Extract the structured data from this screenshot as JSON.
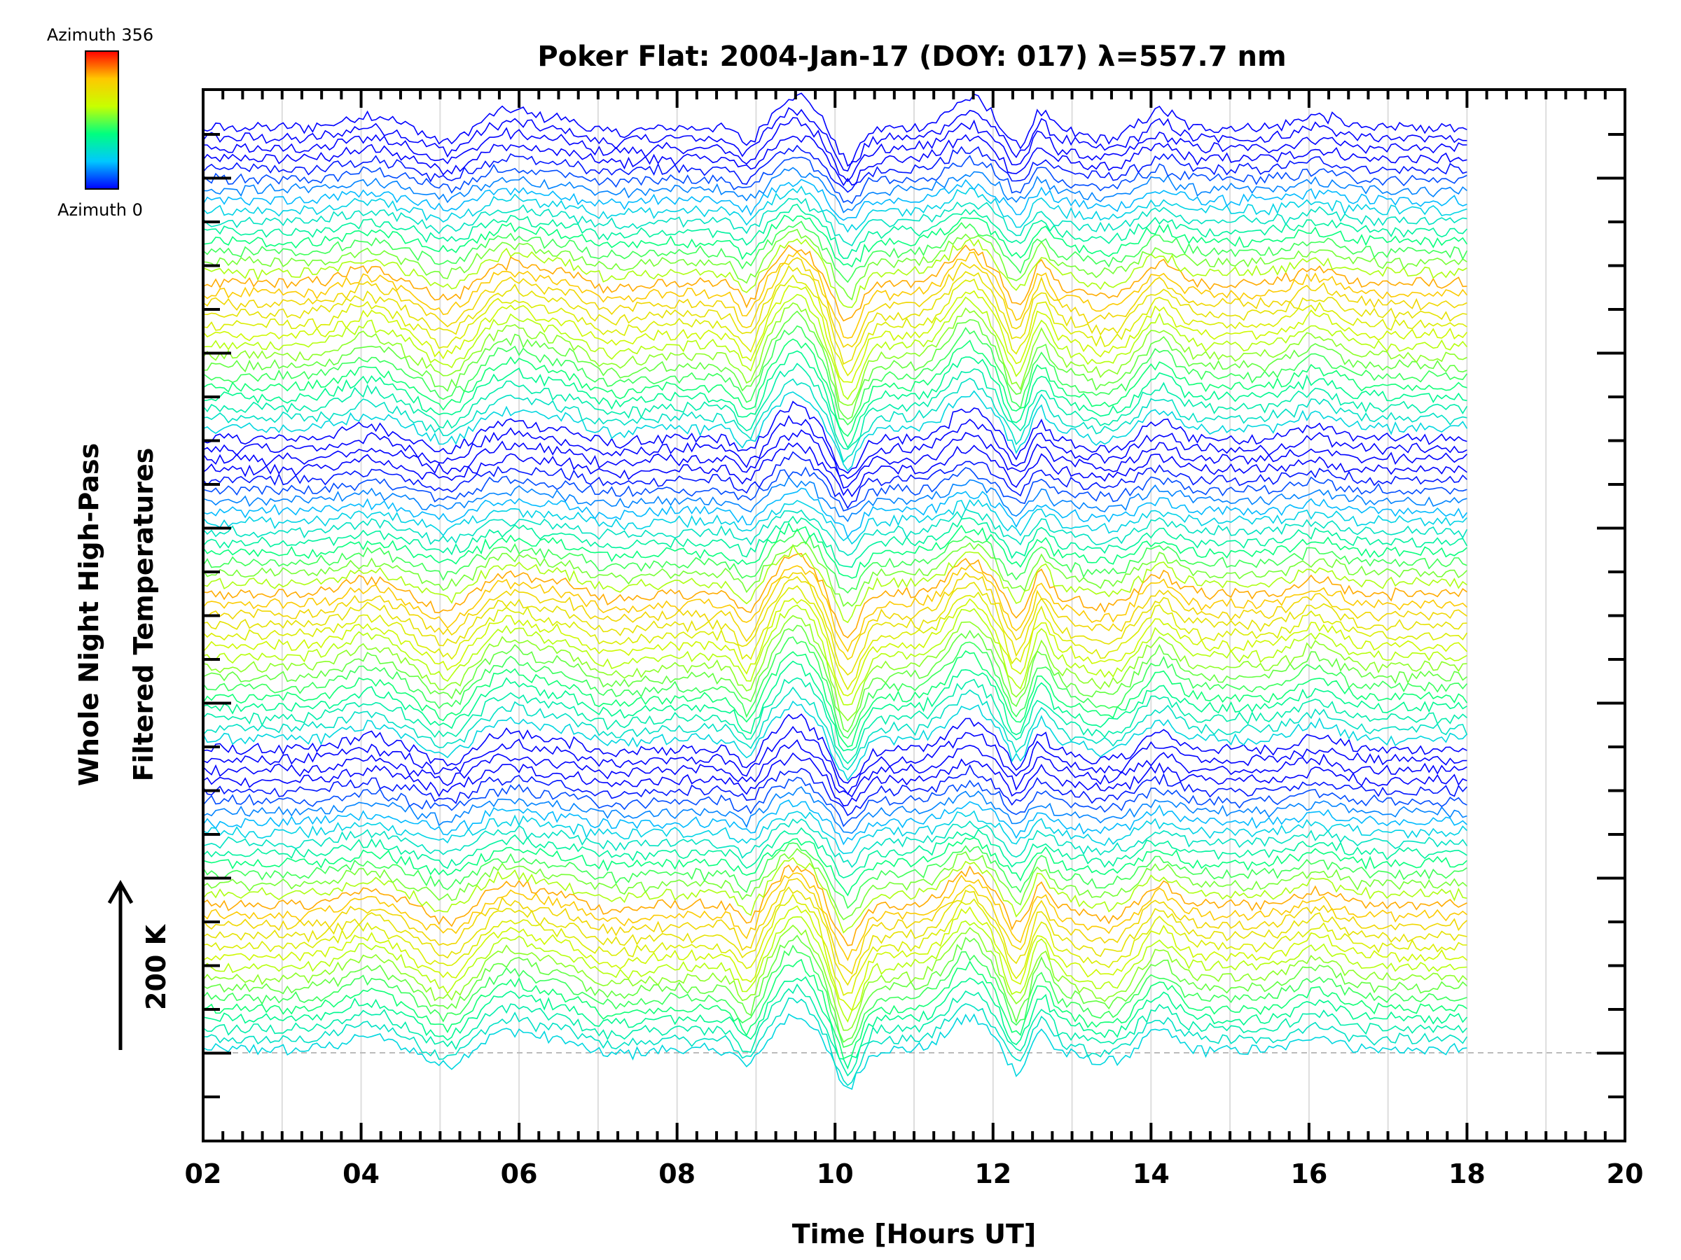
{
  "chart_data": {
    "type": "line",
    "title": "Poker Flat: 2004-Jan-17 (DOY: 017) λ=557.7 nm",
    "xlabel": "Time [Hours UT]",
    "ylabel": [
      "Whole Night High-Pass",
      "Filtered Temperatures"
    ],
    "scale_label": "200 K",
    "xlim": [
      2,
      20
    ],
    "x_ticks": [
      "02",
      "04",
      "06",
      "08",
      "10",
      "12",
      "14",
      "16",
      "18",
      "20"
    ],
    "data_range": [
      2,
      18
    ],
    "colorbar": {
      "top_label": "Azimuth 356",
      "bottom_label": "Azimuth 0",
      "colors": [
        "#0000ff",
        "#00c8ff",
        "#00ff80",
        "#c8ff00",
        "#ffc800",
        "#ff0000"
      ]
    },
    "series_count": 90,
    "stacked": true,
    "description_note": "stacked high-pass filtered temperature traces, one per azimuth 0-356"
  }
}
